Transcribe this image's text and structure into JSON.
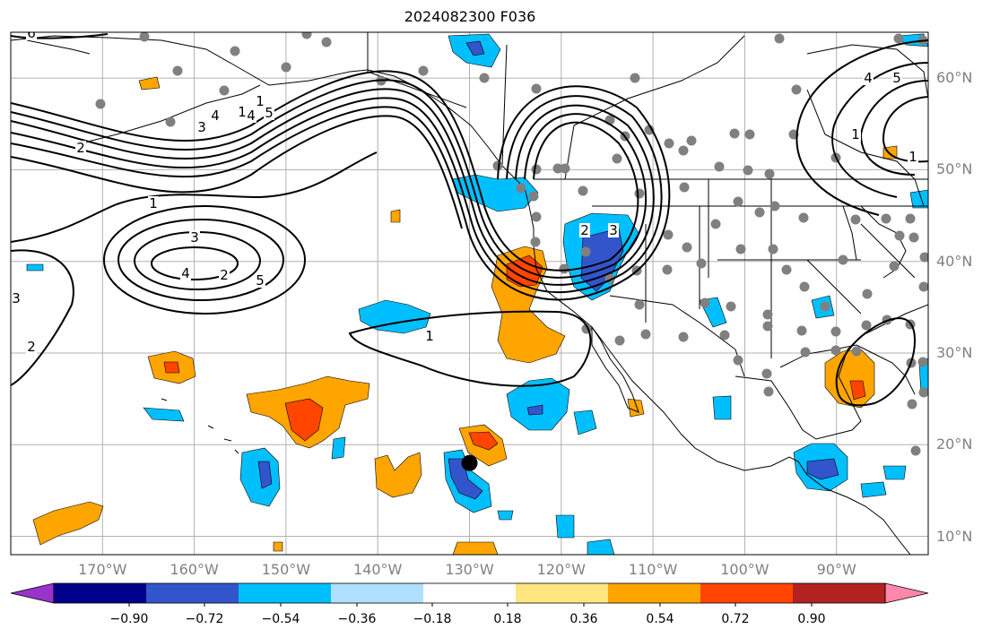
{
  "figure": {
    "title": "2024082300 F036"
  },
  "map": {
    "extent": {
      "lon_min": -180,
      "lon_max": -80,
      "lat_min": 8,
      "lat_max": 65
    },
    "projection": "PlateCarree",
    "grid": true,
    "lat_labels": [
      "10°N",
      "20°N",
      "30°N",
      "40°N",
      "50°N",
      "60°N"
    ],
    "lat_values": [
      10,
      20,
      30,
      40,
      50,
      60
    ],
    "lon_labels": [
      "170°W",
      "160°W",
      "150°W",
      "140°W",
      "130°W",
      "120°W",
      "110°W",
      "100°W",
      "90°W"
    ],
    "lon_values": [
      -170,
      -160,
      -150,
      -140,
      -130,
      -120,
      -110,
      -100,
      -90
    ],
    "marker": {
      "lon": -130,
      "lat": 18,
      "color": "#000000"
    },
    "contour_labels": [
      "1",
      "2",
      "3",
      "4",
      "5",
      "6",
      "1",
      "2",
      "3",
      "4",
      "1",
      "1",
      "2",
      "3",
      "4",
      "5",
      "1",
      "1",
      "2",
      "3",
      "4",
      "5"
    ]
  },
  "colorbar": {
    "tick_labels": [
      "−0.90",
      "−0.72",
      "−0.54",
      "−0.36",
      "−0.18",
      "0.18",
      "0.36",
      "0.54",
      "0.72",
      "0.90"
    ],
    "colors": [
      "#9933cc",
      "#00008b",
      "#3355cc",
      "#00bfff",
      "#b0e0ff",
      "#ffffff",
      "#ffe680",
      "#ffa500",
      "#ff4500",
      "#b22222",
      "#ff88aa"
    ]
  },
  "colors": {
    "frame": "#000000",
    "gridline": "#b0b0b0",
    "axis_text": "#808080",
    "contour": "#000000",
    "station": "#808080"
  }
}
